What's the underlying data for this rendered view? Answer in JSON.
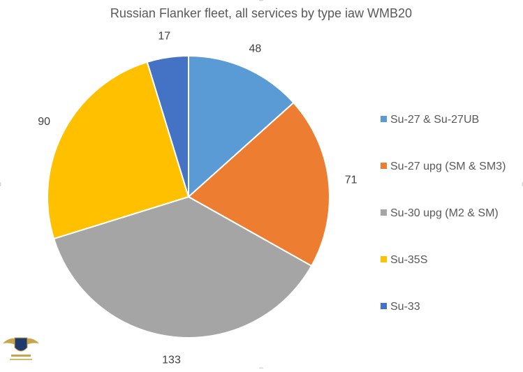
{
  "chart_data": {
    "type": "pie",
    "title": "Russian Flanker fleet, all services by  type iaw WMB20",
    "categories": [
      "Su-27 & Su-27UB",
      "Su-27 upg (SM & SM3)",
      "Su-30 upg (M2 & SM)",
      "Su-35S",
      "Su-33"
    ],
    "values": [
      48,
      71,
      133,
      90,
      17
    ],
    "colors": [
      "#5B9BD5",
      "#ED7D31",
      "#A5A5A5",
      "#FFC000",
      "#4472C4"
    ],
    "legend_position": "right",
    "start_angle": "12 o'clock",
    "direction": "clockwise"
  },
  "watermark": {
    "icon": "arab-defense-forum-eagle-logo"
  }
}
